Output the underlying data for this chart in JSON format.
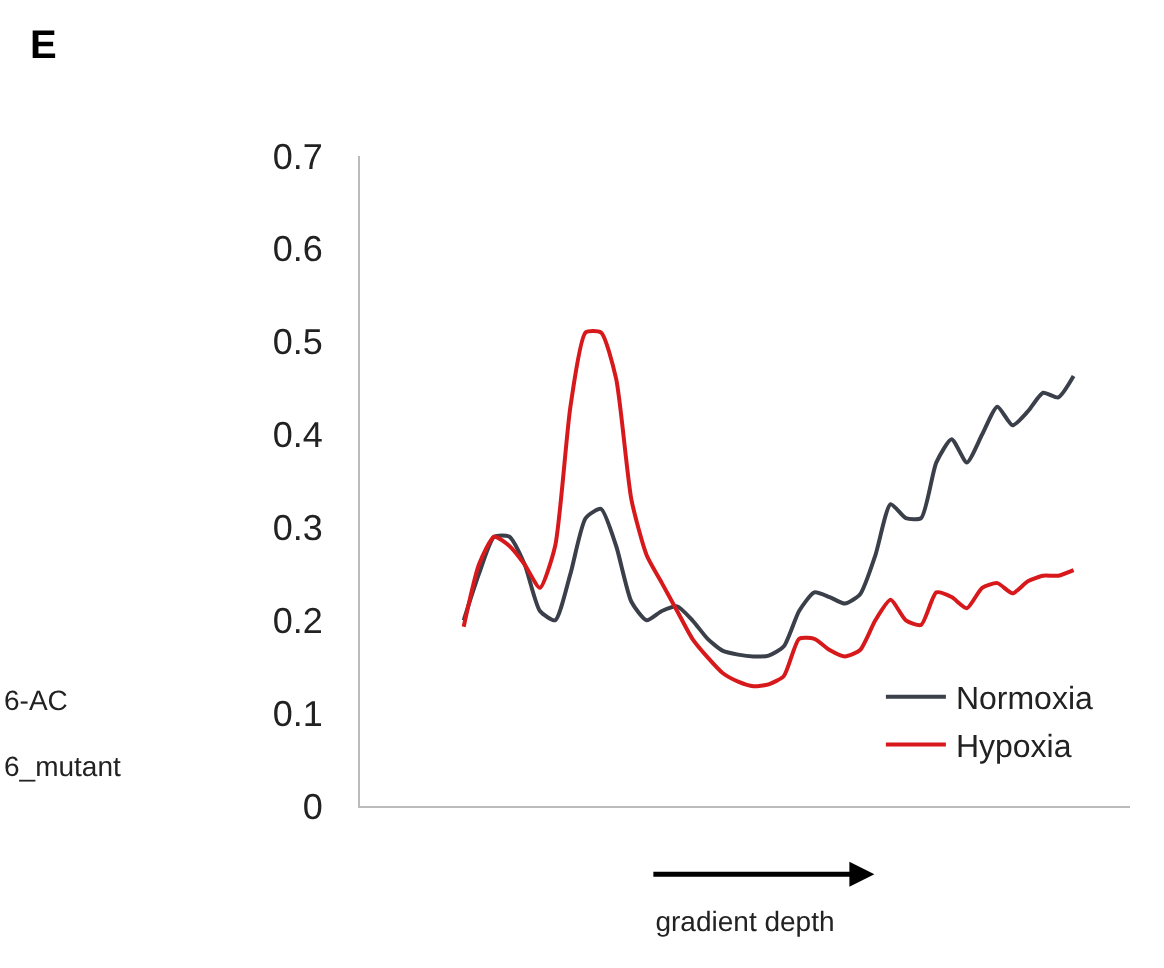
{
  "chart_data": {
    "type": "line",
    "title": "E",
    "xlabel": "gradient depth",
    "categories": [
      null,
      null,
      null,
      null,
      null,
      null,
      null,
      null,
      null,
      null,
      null,
      null,
      null,
      null,
      null,
      null,
      null,
      null,
      null,
      null,
      null,
      null,
      null,
      null,
      null,
      null,
      null,
      null,
      null,
      null,
      null,
      null,
      null,
      null,
      null,
      null,
      null,
      null,
      null,
      null,
      null
    ],
    "series": [
      {
        "name": "Normoxia",
        "color": "#3a3f4a",
        "values": [
          0.2,
          0.25,
          0.29,
          0.29,
          0.26,
          0.21,
          0.2,
          0.25,
          0.31,
          0.32,
          0.28,
          0.22,
          0.2,
          0.21,
          0.215,
          0.2,
          0.18,
          0.167,
          0.163,
          0.161,
          0.162,
          0.172,
          0.21,
          0.23,
          0.225,
          0.218,
          0.228,
          0.27,
          0.325,
          0.31,
          0.31,
          0.37,
          0.395,
          0.37,
          0.4,
          0.43,
          0.41,
          0.425,
          0.445,
          0.44,
          0.463
        ]
      },
      {
        "name": "Hypoxia",
        "color": "#d7191c",
        "values": [
          0.193,
          0.26,
          0.29,
          0.28,
          0.26,
          0.235,
          0.28,
          0.43,
          0.51,
          0.51,
          0.46,
          0.33,
          0.27,
          0.24,
          0.21,
          0.18,
          0.16,
          0.143,
          0.134,
          0.129,
          0.131,
          0.14,
          0.18,
          0.18,
          0.168,
          0.161,
          0.168,
          0.2,
          0.222,
          0.2,
          0.195,
          0.23,
          0.225,
          0.213,
          0.235,
          0.24,
          0.229,
          0.242,
          0.248,
          0.248,
          0.254
        ]
      }
    ],
    "ylim": [
      0,
      0.7
    ],
    "yticks": [
      0,
      0.1,
      0.2,
      0.3,
      0.4,
      0.5,
      0.6,
      0.7
    ],
    "grid": false,
    "legend": "bottom right",
    "marker": "none",
    "line_style": "solid",
    "annotations": [
      "6-AC",
      "6_mutant"
    ]
  }
}
